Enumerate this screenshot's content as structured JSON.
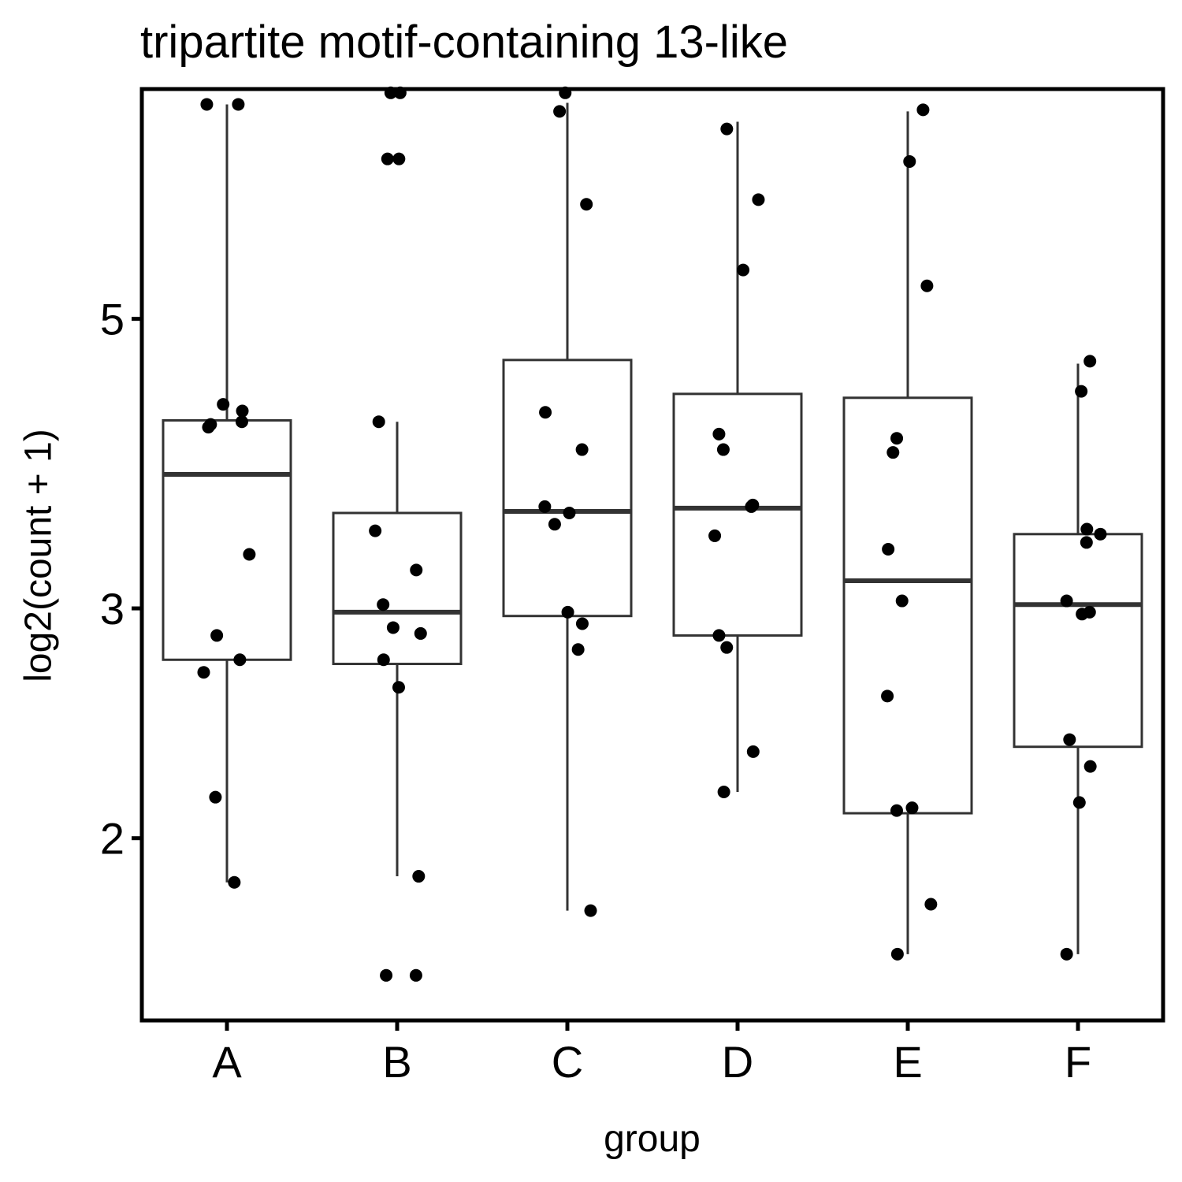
{
  "chart_data": {
    "type": "box",
    "title": "tripartite motif-containing 13-like",
    "xlabel": "group",
    "ylabel": "log2(count + 1)",
    "y_scale": "log",
    "ylim": [
      1.45,
      7.5
    ],
    "y_ticks": [
      2,
      3,
      5
    ],
    "grid": false,
    "categories": [
      "A",
      "B",
      "C",
      "D",
      "E",
      "F"
    ],
    "boxes": [
      {
        "group": "A",
        "whisker_low": 1.85,
        "q1": 2.74,
        "median": 3.8,
        "q3": 4.18,
        "whisker_high": 7.3
      },
      {
        "group": "B",
        "whisker_low": 1.87,
        "q1": 2.72,
        "median": 2.98,
        "q3": 3.55,
        "whisker_high": 4.17
      },
      {
        "group": "C",
        "whisker_low": 1.76,
        "q1": 2.96,
        "median": 3.56,
        "q3": 4.65,
        "whisker_high": 7.32
      },
      {
        "group": "D",
        "whisker_low": 2.17,
        "q1": 2.86,
        "median": 3.58,
        "q3": 4.38,
        "whisker_high": 7.08
      },
      {
        "group": "E",
        "whisker_low": 1.63,
        "q1": 2.09,
        "median": 3.15,
        "q3": 4.35,
        "whisker_high": 7.21
      },
      {
        "group": "F",
        "whisker_low": 1.63,
        "q1": 2.35,
        "median": 3.02,
        "q3": 3.42,
        "whisker_high": 4.62
      }
    ],
    "points": [
      {
        "group": "A",
        "values": [
          7.3,
          7.3,
          4.3,
          4.25,
          4.15,
          4.17,
          4.13,
          3.3,
          2.86,
          2.74,
          2.68,
          2.15,
          1.85
        ]
      },
      {
        "group": "B",
        "values": [
          7.45,
          7.45,
          6.63,
          6.63,
          4.17,
          3.44,
          3.21,
          3.02,
          2.9,
          2.87,
          2.74,
          2.61,
          1.87,
          1.57,
          1.57
        ]
      },
      {
        "group": "C",
        "values": [
          7.45,
          7.21,
          6.12,
          4.24,
          3.97,
          3.59,
          3.55,
          3.48,
          2.98,
          2.92,
          2.79,
          1.76
        ]
      },
      {
        "group": "D",
        "values": [
          6.99,
          6.17,
          5.45,
          4.08,
          3.97,
          3.6,
          3.59,
          3.41,
          2.86,
          2.8,
          2.33,
          2.17
        ]
      },
      {
        "group": "E",
        "values": [
          7.23,
          6.6,
          5.3,
          4.05,
          3.95,
          3.33,
          3.04,
          2.57,
          2.11,
          2.1,
          1.78,
          1.63
        ]
      },
      {
        "group": "F",
        "values": [
          4.64,
          4.4,
          3.45,
          3.42,
          3.37,
          3.04,
          2.98,
          2.97,
          2.38,
          2.27,
          2.13,
          1.63
        ]
      }
    ]
  }
}
